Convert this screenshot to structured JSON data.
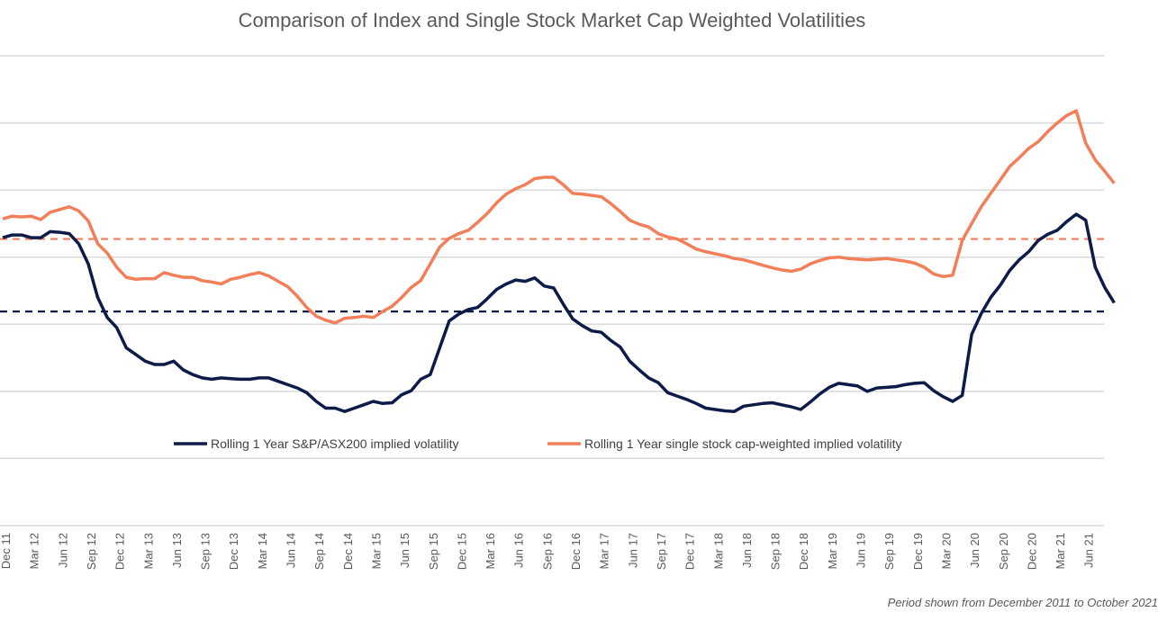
{
  "chart_data": {
    "type": "line",
    "title": "Comparison of Index and Single Stock Market Cap Weighted Volatilities",
    "footnote": "Period shown from December 2011 to October 2021",
    "x_tick_labels": [
      "Dec 11",
      "Mar 12",
      "Jun 12",
      "Sep 12",
      "Dec 12",
      "Mar 13",
      "Jun 13",
      "Sep 13",
      "Dec 13",
      "Mar 14",
      "Jun 14",
      "Sep 14",
      "Dec 14",
      "Mar 15",
      "Jun 15",
      "Sep 15",
      "Dec 15",
      "Mar 16",
      "Jun 16",
      "Sep 16",
      "Dec 16",
      "Mar 17",
      "Jun 17",
      "Sep 17",
      "Dec 17",
      "Mar 18",
      "Jun 18",
      "Sep 18",
      "Dec 18",
      "Mar 19",
      "Jun 19",
      "Sep 19",
      "Dec 19",
      "Mar 20",
      "Jun 20",
      "Sep 20",
      "Dec 20",
      "Mar 21",
      "Jun 21"
    ],
    "x_months": [
      0,
      1,
      2,
      3,
      4,
      5,
      6,
      7,
      8,
      9,
      10,
      11,
      12,
      13,
      14,
      15,
      16,
      17,
      18,
      19,
      20,
      21,
      22,
      23,
      24,
      25,
      26,
      27,
      28,
      29,
      30,
      31,
      32,
      33,
      34,
      35,
      36,
      37,
      38,
      39,
      40,
      41,
      42,
      43,
      44,
      45,
      46,
      47,
      48,
      49,
      50,
      51,
      52,
      53,
      54,
      55,
      56,
      57,
      58,
      59,
      60,
      61,
      62,
      63,
      64,
      65,
      66,
      67,
      68,
      69,
      70,
      71,
      72,
      73,
      74,
      75,
      76,
      77,
      78,
      79,
      80,
      81,
      82,
      83,
      84,
      85,
      86,
      87,
      88,
      89,
      90,
      91,
      92,
      93,
      94,
      95,
      96,
      97,
      98,
      99,
      100,
      101,
      102,
      103,
      104,
      105,
      106,
      107,
      108,
      109,
      110,
      111,
      112,
      113,
      114,
      115,
      116,
      117
    ],
    "y_range": [
      0,
      7
    ],
    "grid_values": [
      0,
      1,
      2,
      3,
      4,
      5,
      6,
      7
    ],
    "legend_placement": "bottom-center",
    "series": [
      {
        "name": "Rolling 1 Year S&P/ASX200 implied volatility",
        "color": "#0d1b48",
        "values": [
          4.29,
          4.33,
          4.33,
          4.29,
          4.29,
          4.38,
          4.37,
          4.35,
          4.2,
          3.9,
          3.4,
          3.1,
          2.95,
          2.65,
          2.55,
          2.45,
          2.4,
          2.4,
          2.45,
          2.32,
          2.25,
          2.2,
          2.18,
          2.2,
          2.19,
          2.18,
          2.18,
          2.2,
          2.2,
          2.15,
          2.1,
          2.05,
          1.98,
          1.85,
          1.75,
          1.75,
          1.7,
          1.75,
          1.8,
          1.85,
          1.82,
          1.83,
          1.95,
          2.01,
          2.18,
          2.25,
          2.65,
          3.05,
          3.15,
          3.22,
          3.25,
          3.38,
          3.52,
          3.6,
          3.66,
          3.64,
          3.69,
          3.57,
          3.54,
          3.3,
          3.08,
          2.98,
          2.9,
          2.88,
          2.76,
          2.66,
          2.45,
          2.32,
          2.2,
          2.13,
          1.98,
          1.93,
          1.88,
          1.82,
          1.75,
          1.73,
          1.71,
          1.7,
          1.78,
          1.8,
          1.82,
          1.83,
          1.8,
          1.77,
          1.73,
          1.84,
          1.96,
          2.06,
          2.12,
          2.1,
          2.08,
          2.0,
          2.05,
          2.06,
          2.07,
          2.1,
          2.12,
          2.13,
          2.01,
          1.92,
          1.85,
          1.94,
          2.85,
          3.16,
          3.4,
          3.58,
          3.8,
          3.96,
          4.08,
          4.25,
          4.34,
          4.4,
          4.53,
          4.64,
          4.55,
          3.85,
          3.55,
          3.32
        ]
      },
      {
        "name": "Rolling 1 Year single stock cap-weighted implied volatility",
        "color": "#f27f5a",
        "values": [
          4.57,
          4.61,
          4.6,
          4.61,
          4.56,
          4.67,
          4.71,
          4.75,
          4.69,
          4.54,
          4.2,
          4.06,
          3.85,
          3.7,
          3.67,
          3.68,
          3.68,
          3.77,
          3.73,
          3.7,
          3.7,
          3.65,
          3.63,
          3.6,
          3.67,
          3.7,
          3.74,
          3.77,
          3.72,
          3.64,
          3.56,
          3.42,
          3.25,
          3.12,
          3.06,
          3.02,
          3.09,
          3.1,
          3.12,
          3.1,
          3.19,
          3.27,
          3.4,
          3.55,
          3.65,
          3.9,
          4.15,
          4.28,
          4.35,
          4.4,
          4.52,
          4.65,
          4.81,
          4.94,
          5.02,
          5.08,
          5.17,
          5.19,
          5.19,
          5.08,
          4.95,
          4.94,
          4.92,
          4.9,
          4.8,
          4.68,
          4.55,
          4.49,
          4.45,
          4.35,
          4.3,
          4.27,
          4.2,
          4.12,
          4.08,
          4.05,
          4.02,
          3.98,
          3.96,
          3.92,
          3.88,
          3.84,
          3.81,
          3.79,
          3.82,
          3.9,
          3.95,
          3.99,
          4.0,
          3.98,
          3.97,
          3.96,
          3.97,
          3.98,
          3.96,
          3.94,
          3.91,
          3.85,
          3.75,
          3.71,
          3.73,
          4.25,
          4.5,
          4.75,
          4.95,
          5.15,
          5.35,
          5.48,
          5.62,
          5.72,
          5.87,
          6.0,
          6.11,
          6.18,
          5.7,
          5.45,
          5.28,
          5.1
        ]
      }
    ],
    "reference_lines": [
      {
        "value": 4.27,
        "color": "#f27f5a",
        "style": "dashed"
      },
      {
        "value": 3.19,
        "color": "#0d1b48",
        "style": "dashed"
      }
    ]
  }
}
